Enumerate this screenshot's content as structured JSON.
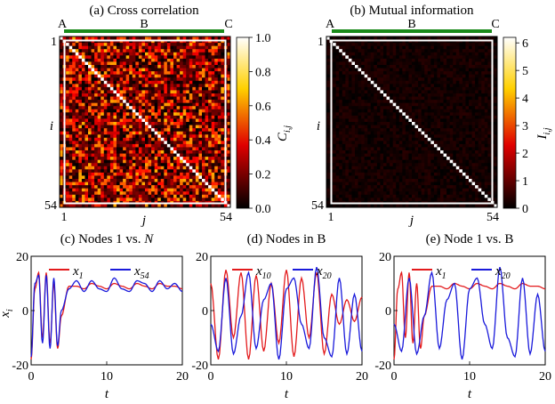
{
  "figure": {
    "panels": [
      {
        "title": "(a) Cross correlation",
        "groups": [
          "A",
          "B",
          "C"
        ],
        "ylabel": "i",
        "xlabel": "j",
        "corner_ticks": {
          "top": "1",
          "bottom": "54",
          "left": "1",
          "right": "54"
        },
        "colorbar_label": "C",
        "colorbar_sub": "i,j"
      },
      {
        "title": "(b) Mutual information",
        "groups": [
          "A",
          "B",
          "C"
        ],
        "ylabel": "i",
        "xlabel": "j",
        "corner_ticks": {
          "top": "1",
          "bottom": "54",
          "left": "1",
          "right": "54"
        },
        "colorbar_label": "I",
        "colorbar_sub": "i,j"
      },
      {
        "title_prefix": "(c) Nodes 1 vs. ",
        "title_italic": "N",
        "ylabel": "x",
        "ylabel_sub": "i",
        "xlabel": "t",
        "legend": [
          {
            "name": "x",
            "sub": "1"
          },
          {
            "name": "x",
            "sub": "54"
          }
        ]
      },
      {
        "title_prefix": "(d) Nodes in B",
        "title_italic": "",
        "xlabel": "t",
        "legend": [
          {
            "name": "x",
            "sub": "10"
          },
          {
            "name": "x",
            "sub": "20"
          }
        ]
      },
      {
        "title_prefix": "(e) Node 1 vs. B",
        "title_italic": "",
        "xlabel": "t",
        "legend": [
          {
            "name": "x",
            "sub": "1"
          },
          {
            "name": "x",
            "sub": "20"
          }
        ]
      }
    ],
    "colors": {
      "series1": "#e31a1c",
      "series2": "#1a1adb",
      "group_bar": "#1a8a1a",
      "highlight_box": "#ffffff"
    }
  },
  "chart_data": [
    {
      "type": "heatmap",
      "title": "(a) Cross correlation",
      "n": 54,
      "x_ticks": [
        "1",
        "54"
      ],
      "y_ticks": [
        "1",
        "54"
      ],
      "colorbar": {
        "min": 0,
        "max": 1,
        "ticks": [
          "0.0",
          "0.2",
          "0.4",
          "0.6",
          "0.8",
          "1.0"
        ],
        "colormap": "hot"
      },
      "diagonal_value": 1.0,
      "offdiag_typical_range": [
        0.0,
        0.6
      ]
    },
    {
      "type": "heatmap",
      "title": "(b) Mutual information",
      "n": 54,
      "x_ticks": [
        "1",
        "54"
      ],
      "y_ticks": [
        "1",
        "54"
      ],
      "colorbar": {
        "min": 0,
        "max": 6.2,
        "ticks": [
          "0",
          "1",
          "2",
          "3",
          "4",
          "5",
          "6"
        ],
        "colormap": "hot"
      },
      "diagonal_value": 6.2,
      "offdiag_typical_range": [
        0.0,
        0.4
      ]
    },
    {
      "type": "line",
      "title": "(c) Nodes 1 vs. N",
      "xlim": [
        0,
        20
      ],
      "ylim": [
        -20,
        20
      ],
      "x_ticks": [
        "0",
        "10",
        "20"
      ],
      "y_ticks": [
        "-20",
        "0",
        "20"
      ],
      "series": [
        {
          "name": "x1",
          "x": [
            0,
            0.5,
            1,
            1.5,
            2,
            2.5,
            3,
            3.5,
            4,
            5,
            6,
            7,
            8,
            9,
            10,
            11,
            12,
            13,
            14,
            15,
            16,
            17,
            18,
            19,
            20
          ],
          "y": [
            -18,
            8,
            14,
            -10,
            14,
            -12,
            10,
            -14,
            -2,
            9,
            9,
            8,
            10,
            9,
            8,
            10,
            9,
            8,
            10,
            9,
            8,
            10,
            9,
            9,
            8
          ]
        },
        {
          "name": "x54",
          "x": [
            0,
            0.5,
            1,
            1.5,
            2,
            2.5,
            3,
            3.5,
            4,
            5,
            6,
            7,
            8,
            9,
            10,
            11,
            12,
            13,
            14,
            15,
            16,
            17,
            18,
            19,
            20
          ],
          "y": [
            -17,
            10,
            13,
            -12,
            13,
            -14,
            12,
            -13,
            0,
            8,
            11,
            7,
            11,
            8,
            7,
            12,
            8,
            7,
            11,
            10,
            7,
            11,
            8,
            10,
            7
          ]
        }
      ]
    },
    {
      "type": "line",
      "title": "(d) Nodes in B",
      "xlim": [
        0,
        20
      ],
      "ylim": [
        -20,
        20
      ],
      "x_ticks": [
        "0",
        "10",
        "20"
      ],
      "y_ticks": [
        "-20",
        "0",
        "20"
      ],
      "series": [
        {
          "name": "x10",
          "x": [
            0,
            1,
            2,
            3,
            4,
            5,
            6,
            7,
            8,
            9,
            10,
            11,
            12,
            13,
            14,
            15,
            16,
            17,
            18,
            19,
            20
          ],
          "y": [
            10,
            -18,
            15,
            -10,
            14,
            -18,
            13,
            -15,
            10,
            -12,
            15,
            -17,
            12,
            -10,
            14,
            -16,
            6,
            -5,
            4,
            -4,
            5
          ]
        },
        {
          "name": "x20",
          "x": [
            0,
            1,
            2,
            3,
            4,
            5,
            6,
            7,
            8,
            9,
            10,
            11,
            12,
            13,
            14,
            15,
            16,
            17,
            18,
            19,
            20
          ],
          "y": [
            -5,
            -15,
            12,
            -16,
            -2,
            14,
            -14,
            4,
            10,
            -18,
            8,
            12,
            -5,
            -14,
            16,
            -10,
            -17,
            12,
            -16,
            6,
            -15
          ]
        }
      ]
    },
    {
      "type": "line",
      "title": "(e) Node 1 vs. B",
      "xlim": [
        0,
        20
      ],
      "ylim": [
        -20,
        20
      ],
      "x_ticks": [
        "0",
        "10",
        "20"
      ],
      "y_ticks": [
        "-20",
        "0",
        "20"
      ],
      "series": [
        {
          "name": "x1",
          "x": [
            0,
            0.5,
            1,
            1.5,
            2,
            2.5,
            3,
            3.5,
            4,
            5,
            6,
            7,
            8,
            9,
            10,
            11,
            12,
            13,
            14,
            15,
            16,
            17,
            18,
            19,
            20
          ],
          "y": [
            -18,
            8,
            14,
            -10,
            14,
            -12,
            10,
            -14,
            -2,
            9,
            9,
            8,
            10,
            9,
            8,
            10,
            9,
            8,
            10,
            9,
            8,
            10,
            9,
            9,
            8
          ]
        },
        {
          "name": "x20",
          "x": [
            0,
            1,
            2,
            3,
            4,
            5,
            6,
            7,
            8,
            9,
            10,
            11,
            12,
            13,
            14,
            15,
            16,
            17,
            18,
            19,
            20
          ],
          "y": [
            -5,
            -15,
            12,
            -16,
            -2,
            14,
            -14,
            4,
            10,
            -18,
            8,
            12,
            -5,
            -14,
            16,
            -10,
            -17,
            12,
            -16,
            6,
            -15
          ]
        }
      ]
    }
  ]
}
